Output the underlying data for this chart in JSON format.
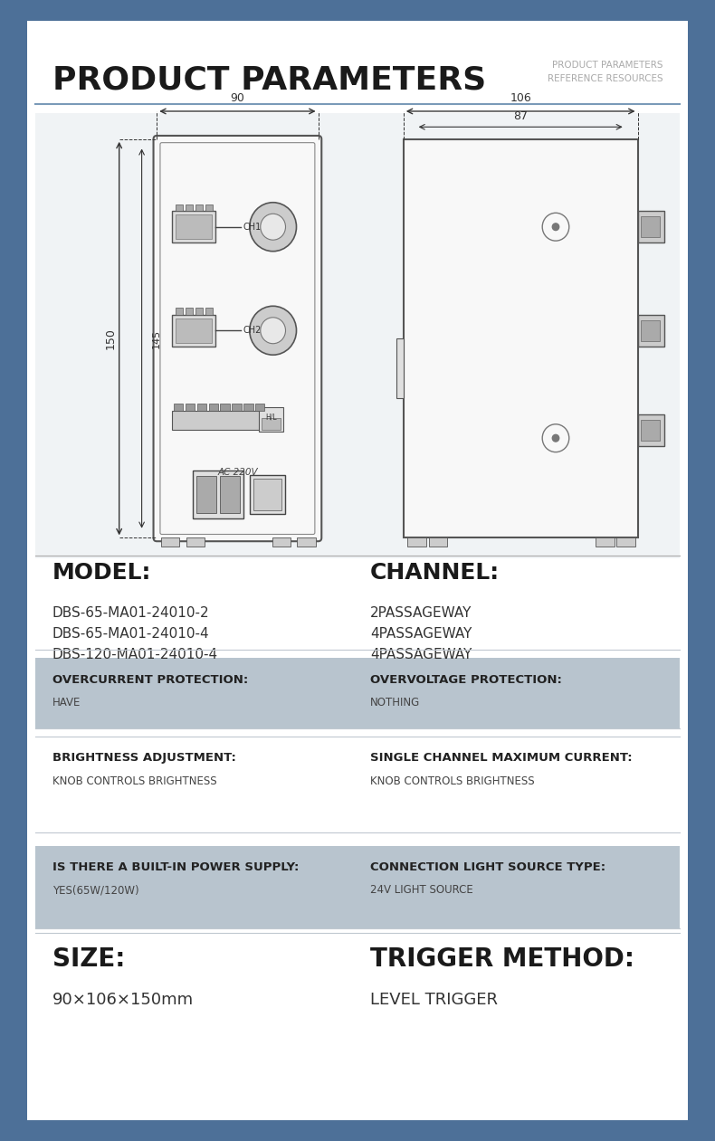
{
  "title": "PRODUCT PARAMETERS",
  "subtitle_line1": "PRODUCT PARAMETERS",
  "subtitle_line2": "REFERENCE RESOURCES",
  "bg_color": "#4d7098",
  "panel_bg": "#ffffff",
  "gray_row_bg": "#b8c4ce",
  "white_row_bg": "#ffffff",
  "model_label": "MODEL:",
  "model_values": [
    "DBS-65-MA01-24010-2",
    "DBS-65-MA01-24010-4",
    "DBS-120-MA01-24010-4"
  ],
  "channel_label": "CHANNEL:",
  "channel_values": [
    "2PASSAGEWAY",
    "4PASSAGEWAY",
    "4PASSAGEWAY"
  ],
  "rows": [
    {
      "bg": "#b8c4ce",
      "col1_label": "OVERCURRENT PROTECTION:",
      "col1_value": "HAVE",
      "col2_label": "OVERVOLTAGE PROTECTION:",
      "col2_value": "NOTHING"
    },
    {
      "bg": "#ffffff",
      "col1_label": "BRIGHTNESS ADJUSTMENT:",
      "col1_value": "KNOB CONTROLS BRIGHTNESS",
      "col2_label": "SINGLE CHANNEL MAXIMUM CURRENT:",
      "col2_value": "KNOB CONTROLS BRIGHTNESS"
    },
    {
      "bg": "#b8c4ce",
      "col1_label": "IS THERE A BUILT-IN POWER SUPPLY:",
      "col1_value": "YES(65W/120W)",
      "col2_label": "CONNECTION LIGHT SOURCE TYPE:",
      "col2_value": "24V LIGHT SOURCE"
    }
  ],
  "size_label": "SIZE:",
  "size_value": "90×106×150mm",
  "trigger_label": "TRIGGER METHOD:",
  "trigger_value": "LEVEL TRIGGER"
}
